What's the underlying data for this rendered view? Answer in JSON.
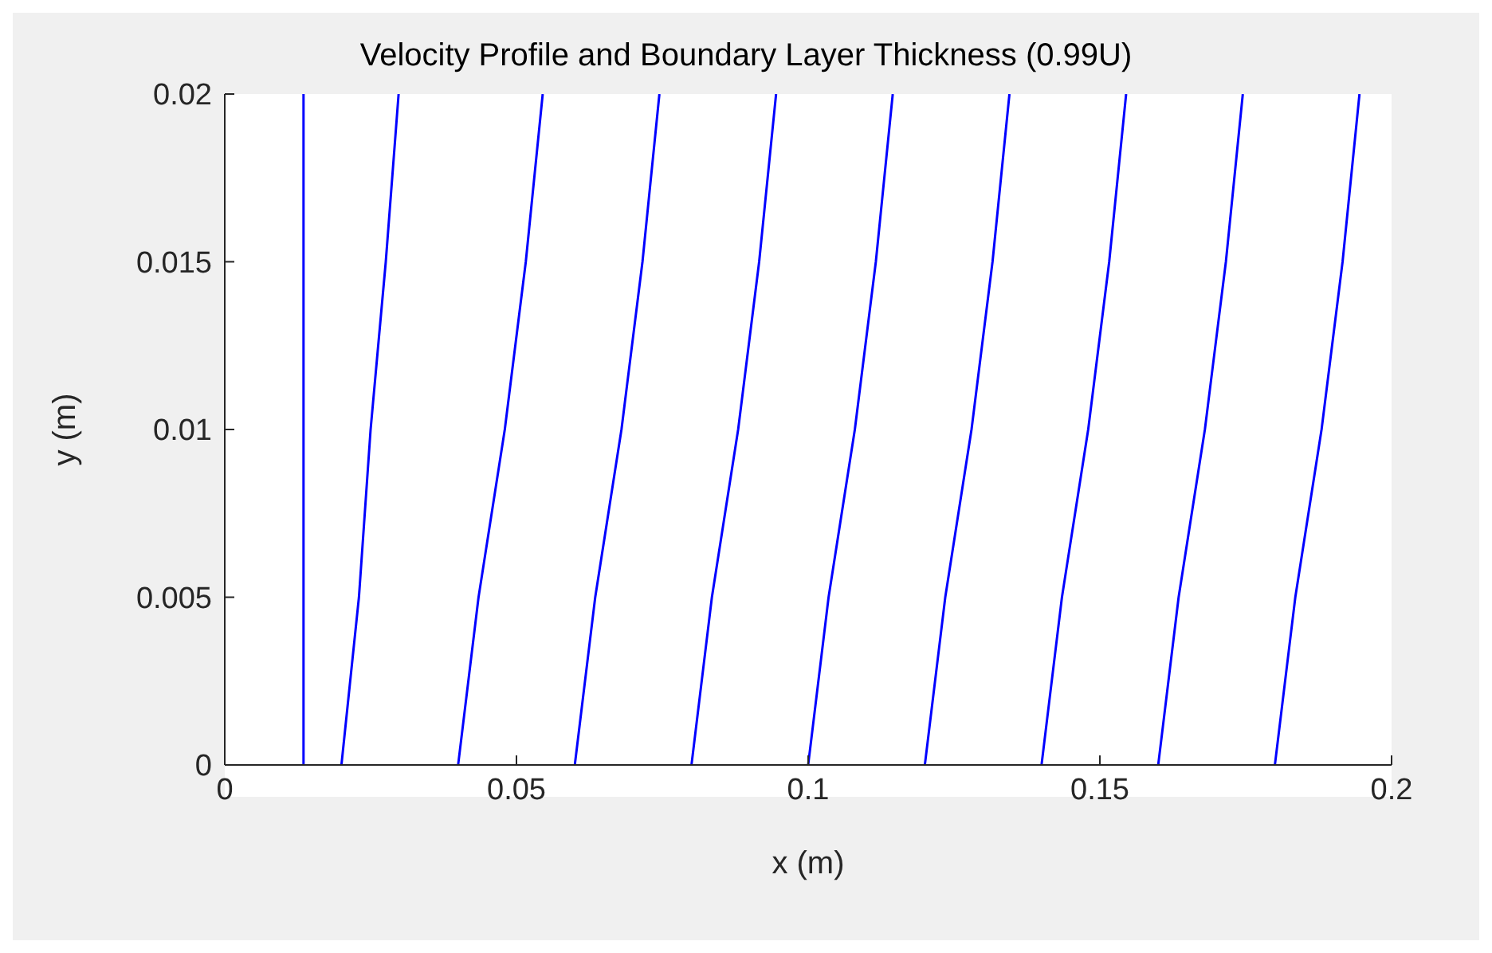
{
  "chart_data": {
    "type": "line",
    "title": "Velocity Profile and Boundary Layer Thickness (0.99U)",
    "xlabel": "x (m)",
    "ylabel": "y (m)",
    "xlim": [
      0,
      0.2
    ],
    "xticks": [
      0,
      0.05,
      0.1,
      0.15,
      0.2
    ],
    "ylim": [
      0,
      0.02
    ],
    "yticks": [
      0,
      0.005,
      0.01,
      0.015,
      0.02
    ],
    "grid": false,
    "marker": "none",
    "line_style": "solid",
    "series": [
      {
        "color": "#0000ff",
        "x": [
          0.0135,
          0.0135,
          0.0135,
          0.0135,
          0.0135
        ],
        "values": [
          0,
          0.005,
          0.01,
          0.015,
          0.02
        ]
      },
      {
        "color": "#0000ff",
        "x": [
          0.02,
          0.023,
          0.025,
          0.0276,
          0.0298
        ],
        "values": [
          0,
          0.005,
          0.01,
          0.015,
          0.02
        ]
      },
      {
        "color": "#0000ff",
        "x": [
          0.04,
          0.0435,
          0.048,
          0.0516,
          0.0545
        ],
        "values": [
          0,
          0.005,
          0.01,
          0.015,
          0.02
        ]
      },
      {
        "color": "#0000ff",
        "x": [
          0.06,
          0.0635,
          0.068,
          0.0716,
          0.0745
        ],
        "values": [
          0,
          0.005,
          0.01,
          0.015,
          0.02
        ]
      },
      {
        "color": "#0000ff",
        "x": [
          0.08,
          0.0835,
          0.088,
          0.0916,
          0.0945
        ],
        "values": [
          0,
          0.005,
          0.01,
          0.015,
          0.02
        ]
      },
      {
        "color": "#0000ff",
        "x": [
          0.1,
          0.1035,
          0.108,
          0.1116,
          0.1145
        ],
        "values": [
          0,
          0.005,
          0.01,
          0.015,
          0.02
        ]
      },
      {
        "color": "#0000ff",
        "x": [
          0.12,
          0.1235,
          0.128,
          0.1316,
          0.1345
        ],
        "values": [
          0,
          0.005,
          0.01,
          0.015,
          0.02
        ]
      },
      {
        "color": "#0000ff",
        "x": [
          0.14,
          0.1435,
          0.148,
          0.1516,
          0.1545
        ],
        "values": [
          0,
          0.005,
          0.01,
          0.015,
          0.02
        ]
      },
      {
        "color": "#0000ff",
        "x": [
          0.16,
          0.1635,
          0.168,
          0.1716,
          0.1745
        ],
        "values": [
          0,
          0.005,
          0.01,
          0.015,
          0.02
        ]
      },
      {
        "color": "#0000ff",
        "x": [
          0.18,
          0.1835,
          0.188,
          0.1916,
          0.1945
        ],
        "values": [
          0,
          0.005,
          0.01,
          0.015,
          0.02
        ]
      }
    ]
  }
}
